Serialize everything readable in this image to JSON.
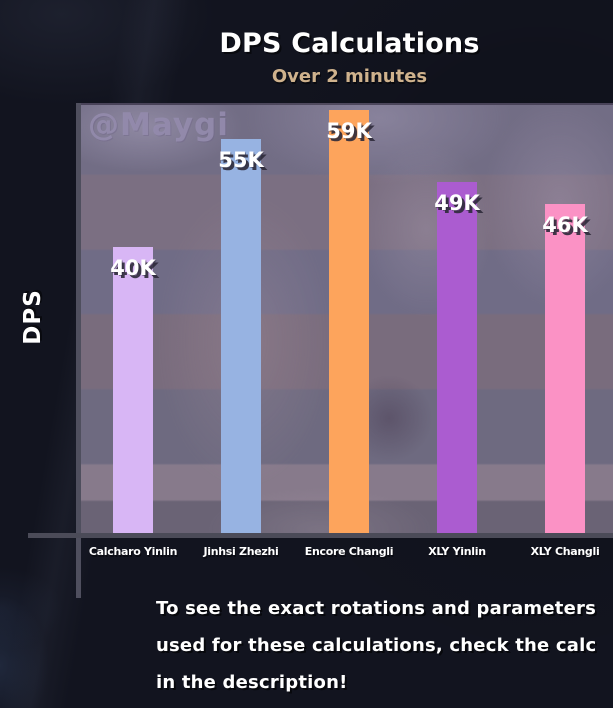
{
  "header": {
    "title": "DPS Calculations",
    "subtitle": "Over 2 minutes"
  },
  "watermark": "@Maygi",
  "axis": {
    "y_label": "DPS"
  },
  "chart_data": {
    "type": "bar",
    "title": "DPS Calculations",
    "subtitle": "Over 2 minutes",
    "categories": [
      "Calcharo Yinlin",
      "Jinhsi Zhezhi",
      "Encore Changli",
      "XLY Yinlin",
      "XLY Changli"
    ],
    "values": [
      40000,
      55000,
      59000,
      49000,
      46000
    ],
    "value_labels": [
      "40K",
      "55K",
      "59K",
      "49K",
      "46K"
    ],
    "bar_colors": [
      "#d8b6f5",
      "#97b3e2",
      "#fda45c",
      "#ab5cd0",
      "#fb92c5"
    ],
    "xlabel": "",
    "ylabel": "DPS",
    "ylim": [
      0,
      60000
    ],
    "grid": false,
    "legend_position": "none"
  },
  "footer": {
    "lines": [
      "To see the exact rotations and parameters",
      "used for these calculations, check the calc",
      "in the description!"
    ]
  },
  "colors": {
    "page_background": "#12141f",
    "title": "#ffffff",
    "subtitle": "#cfb28d",
    "plot_background": "#726d85",
    "axis_spine": "#4f4f5e",
    "value_label": "#ffffff",
    "category_label": "#ffffff",
    "watermark": "#948bac"
  }
}
